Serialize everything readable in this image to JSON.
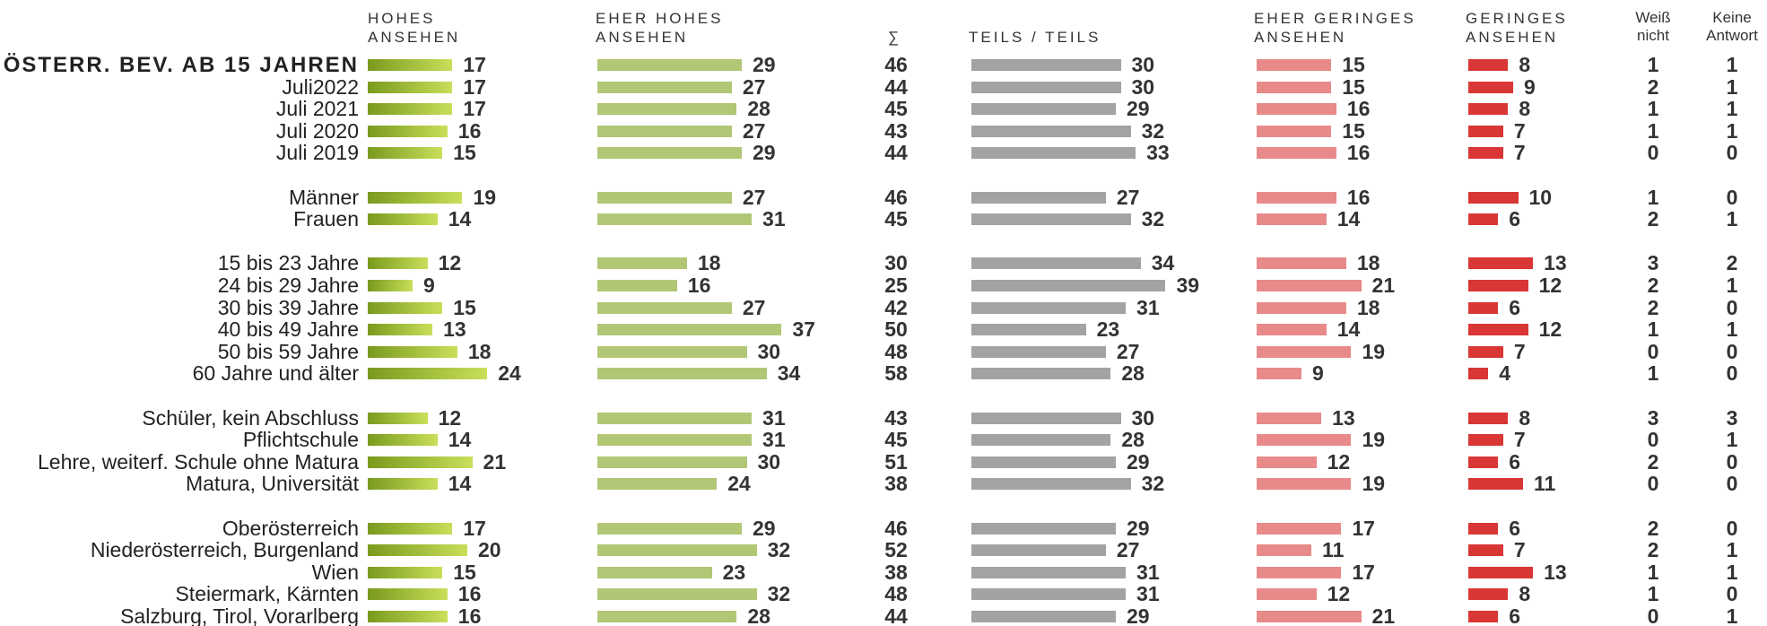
{
  "chart_data": {
    "type": "bar",
    "layout": "stacked-horizontal-columns",
    "column_headers": {
      "hohes": "HOHES\nANSEHEN",
      "eher_hohes": "EHER HOHES\nANSEHEN",
      "sum": "∑",
      "teils": "TEILS / TEILS",
      "eher_geringes": "EHER GERINGES\nANSEHEN",
      "geringes": "GERINGES\nANSEHEN",
      "weiss": "Weiß\nnicht",
      "keine": "Keine\nAntwort"
    },
    "colors": {
      "hohes_start": "#7a9a1e",
      "hohes_end": "#c8df5a",
      "eher_hohes": "#b2c776",
      "teils": "#a3a3a3",
      "eher_geringes": "#e88a8a",
      "geringes": "#d93636"
    },
    "rows": [
      {
        "label": "ÖSTERR. BEV. AB 15 JAHREN",
        "title": true,
        "hohes": 17,
        "eher_hohes": 29,
        "sum": 46,
        "teils": 30,
        "eher_geringes": 15,
        "geringes": 8,
        "weiss": 1,
        "keine": 1
      },
      {
        "label": "Juli2022",
        "hohes": 17,
        "eher_hohes": 27,
        "sum": 44,
        "teils": 30,
        "eher_geringes": 15,
        "geringes": 9,
        "weiss": 2,
        "keine": 1
      },
      {
        "label": "Juli 2021",
        "hohes": 17,
        "eher_hohes": 28,
        "sum": 45,
        "teils": 29,
        "eher_geringes": 16,
        "geringes": 8,
        "weiss": 1,
        "keine": 1
      },
      {
        "label": "Juli 2020",
        "hohes": 16,
        "eher_hohes": 27,
        "sum": 43,
        "teils": 32,
        "eher_geringes": 15,
        "geringes": 7,
        "weiss": 1,
        "keine": 1
      },
      {
        "label": "Juli 2019",
        "hohes": 15,
        "eher_hohes": 29,
        "sum": 44,
        "teils": 33,
        "eher_geringes": 16,
        "geringes": 7,
        "weiss": 0,
        "keine": 0
      },
      {
        "label": "Männer",
        "gap_before": true,
        "hohes": 19,
        "eher_hohes": 27,
        "sum": 46,
        "teils": 27,
        "eher_geringes": 16,
        "geringes": 10,
        "weiss": 1,
        "keine": 0
      },
      {
        "label": "Frauen",
        "hohes": 14,
        "eher_hohes": 31,
        "sum": 45,
        "teils": 32,
        "eher_geringes": 14,
        "geringes": 6,
        "weiss": 2,
        "keine": 1
      },
      {
        "label": "15 bis 23 Jahre",
        "gap_before": true,
        "hohes": 12,
        "eher_hohes": 18,
        "sum": 30,
        "teils": 34,
        "eher_geringes": 18,
        "geringes": 13,
        "weiss": 3,
        "keine": 2
      },
      {
        "label": "24 bis 29 Jahre",
        "hohes": 9,
        "eher_hohes": 16,
        "sum": 25,
        "teils": 39,
        "eher_geringes": 21,
        "geringes": 12,
        "weiss": 2,
        "keine": 1
      },
      {
        "label": "30 bis 39 Jahre",
        "hohes": 15,
        "eher_hohes": 27,
        "sum": 42,
        "teils": 31,
        "eher_geringes": 18,
        "geringes": 6,
        "weiss": 2,
        "keine": 0
      },
      {
        "label": "40 bis 49 Jahre",
        "hohes": 13,
        "eher_hohes": 37,
        "sum": 50,
        "teils": 23,
        "eher_geringes": 14,
        "geringes": 12,
        "weiss": 1,
        "keine": 1
      },
      {
        "label": "50 bis 59 Jahre",
        "hohes": 18,
        "eher_hohes": 30,
        "sum": 48,
        "teils": 27,
        "eher_geringes": 19,
        "geringes": 7,
        "weiss": 0,
        "keine": 0
      },
      {
        "label": "60 Jahre und älter",
        "hohes": 24,
        "eher_hohes": 34,
        "sum": 58,
        "teils": 28,
        "eher_geringes": 9,
        "geringes": 4,
        "weiss": 1,
        "keine": 0
      },
      {
        "label": "Schüler, kein Abschluss",
        "gap_before": true,
        "hohes": 12,
        "eher_hohes": 31,
        "sum": 43,
        "teils": 30,
        "eher_geringes": 13,
        "geringes": 8,
        "weiss": 3,
        "keine": 3
      },
      {
        "label": "Pflichtschule",
        "hohes": 14,
        "eher_hohes": 31,
        "sum": 45,
        "teils": 28,
        "eher_geringes": 19,
        "geringes": 7,
        "weiss": 0,
        "keine": 1
      },
      {
        "label": "Lehre, weiterf. Schule ohne Matura",
        "hohes": 21,
        "eher_hohes": 30,
        "sum": 51,
        "teils": 29,
        "eher_geringes": 12,
        "geringes": 6,
        "weiss": 2,
        "keine": 0
      },
      {
        "label": "Matura, Universität",
        "hohes": 14,
        "eher_hohes": 24,
        "sum": 38,
        "teils": 32,
        "eher_geringes": 19,
        "geringes": 11,
        "weiss": 0,
        "keine": 0
      },
      {
        "label": "Oberösterreich",
        "gap_before": true,
        "hohes": 17,
        "eher_hohes": 29,
        "sum": 46,
        "teils": 29,
        "eher_geringes": 17,
        "geringes": 6,
        "weiss": 2,
        "keine": 0
      },
      {
        "label": "Niederösterreich, Burgenland",
        "hohes": 20,
        "eher_hohes": 32,
        "sum": 52,
        "teils": 27,
        "eher_geringes": 11,
        "geringes": 7,
        "weiss": 2,
        "keine": 1
      },
      {
        "label": "Wien",
        "hohes": 15,
        "eher_hohes": 23,
        "sum": 38,
        "teils": 31,
        "eher_geringes": 17,
        "geringes": 13,
        "weiss": 1,
        "keine": 1
      },
      {
        "label": "Steiermark, Kärnten",
        "hohes": 16,
        "eher_hohes": 32,
        "sum": 48,
        "teils": 31,
        "eher_geringes": 12,
        "geringes": 8,
        "weiss": 1,
        "keine": 0
      },
      {
        "label": "Salzburg, Tirol, Vorarlberg",
        "hohes": 16,
        "eher_hohes": 28,
        "sum": 44,
        "teils": 29,
        "eher_geringes": 21,
        "geringes": 6,
        "weiss": 0,
        "keine": 1
      }
    ]
  }
}
